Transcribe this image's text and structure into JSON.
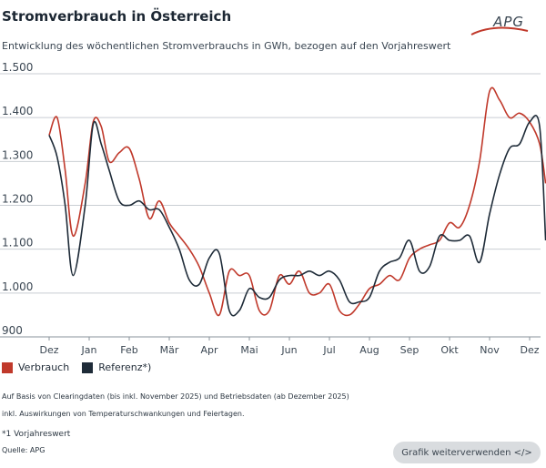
{
  "header": {
    "title": "Stromverbrauch in Österreich",
    "subtitle": "Entwicklung des wöchentlichen Stromverbrauchs in GWh, bezogen auf den Vorjahreswert",
    "logo_text": "APG"
  },
  "legend": {
    "items": [
      {
        "label": "Verbrauch",
        "color": "#c0392b"
      },
      {
        "label": "Referenz*)",
        "color": "#1e2b38"
      }
    ]
  },
  "notes": {
    "line1": "Auf Basis von Clearingdaten (bis inkl. November 2025) und Betriebsdaten (ab Dezember 2025)",
    "line2": "inkl. Auswirkungen von Temperaturschwankungen und Feiertagen.",
    "footnote": "*1 Vorjahreswert",
    "source": "Quelle: APG"
  },
  "actions": {
    "reuse_label": "Grafik weiterverwenden </>"
  },
  "chart_data": {
    "type": "line",
    "x_categories": [
      "Dez",
      "Jan",
      "Feb",
      "Mär",
      "Apr",
      "Mai",
      "Jun",
      "Jul",
      "Aug",
      "Sep",
      "Okt",
      "Nov",
      "Dez"
    ],
    "y_ticks": [
      "1.500",
      "1.400",
      "1.300",
      "1.200",
      "1.100",
      "1.000",
      "900"
    ],
    "ylim": [
      900,
      1500
    ],
    "grid": true,
    "legend_position": "bottom-left",
    "series": [
      {
        "name": "Verbrauch",
        "color": "#c0392b",
        "x": [
          0,
          0.2,
          0.4,
          0.6,
          0.9,
          1.1,
          1.3,
          1.5,
          1.75,
          2.0,
          2.25,
          2.5,
          2.75,
          3.0,
          3.25,
          3.5,
          3.75,
          4.0,
          4.25,
          4.5,
          4.75,
          5.0,
          5.25,
          5.5,
          5.75,
          6.0,
          6.25,
          6.5,
          6.75,
          7.0,
          7.25,
          7.5,
          7.75,
          8.0,
          8.25,
          8.5,
          8.75,
          9.0,
          9.25,
          9.5,
          9.75,
          10.0,
          10.25,
          10.5,
          10.75,
          11.0,
          11.25,
          11.5,
          11.75,
          12.0,
          12.25,
          12.4
        ],
        "y": [
          1360,
          1400,
          1280,
          1130,
          1250,
          1390,
          1380,
          1300,
          1320,
          1330,
          1260,
          1170,
          1210,
          1160,
          1130,
          1100,
          1060,
          1000,
          950,
          1050,
          1040,
          1040,
          960,
          960,
          1040,
          1020,
          1050,
          1000,
          1000,
          1020,
          960,
          950,
          975,
          1010,
          1020,
          1040,
          1030,
          1080,
          1100,
          1110,
          1120,
          1160,
          1150,
          1200,
          1300,
          1460,
          1440,
          1400,
          1410,
          1390,
          1340,
          1250
        ]
      },
      {
        "name": "Referenz*)",
        "color": "#1e2b38",
        "x": [
          0,
          0.2,
          0.4,
          0.6,
          0.9,
          1.1,
          1.3,
          1.5,
          1.75,
          2.0,
          2.25,
          2.5,
          2.75,
          3.0,
          3.25,
          3.5,
          3.75,
          4.0,
          4.25,
          4.5,
          4.75,
          5.0,
          5.25,
          5.5,
          5.75,
          6.0,
          6.25,
          6.5,
          6.75,
          7.0,
          7.25,
          7.5,
          7.75,
          8.0,
          8.25,
          8.5,
          8.75,
          9.0,
          9.25,
          9.5,
          9.75,
          10.0,
          10.25,
          10.5,
          10.75,
          11.0,
          11.25,
          11.5,
          11.75,
          12.0,
          12.25,
          12.4
        ],
        "y": [
          1360,
          1310,
          1200,
          1040,
          1200,
          1385,
          1340,
          1280,
          1210,
          1200,
          1210,
          1190,
          1190,
          1150,
          1100,
          1030,
          1020,
          1080,
          1090,
          960,
          960,
          1010,
          990,
          990,
          1030,
          1040,
          1040,
          1050,
          1040,
          1050,
          1030,
          980,
          980,
          990,
          1050,
          1070,
          1080,
          1120,
          1050,
          1060,
          1130,
          1120,
          1120,
          1130,
          1070,
          1180,
          1270,
          1330,
          1340,
          1390,
          1380,
          1120
        ]
      }
    ]
  }
}
